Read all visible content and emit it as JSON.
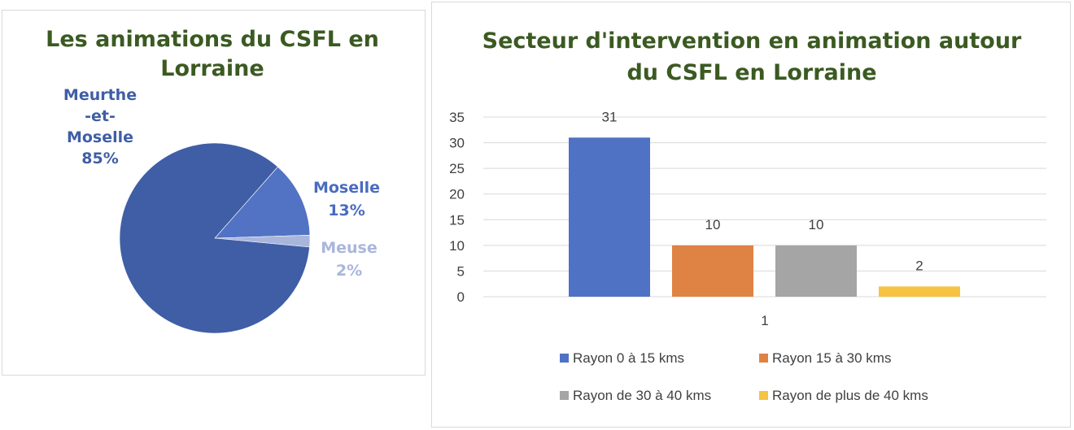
{
  "chart_data": [
    {
      "type": "pie",
      "title": "Les animations du CSFL en Lorraine",
      "title_lines": [
        "Les animations du CSFL en",
        "Lorraine"
      ],
      "slices": [
        {
          "label": "Meurthe -et- Moselle",
          "label_lines": [
            "Meurthe",
            "-et-",
            "Moselle"
          ],
          "value": 85,
          "value_label": "85%",
          "color": "#3f5ea6",
          "label_color": "#3f5ea6"
        },
        {
          "label": "Moselle",
          "label_lines": [
            "Moselle"
          ],
          "value": 13,
          "value_label": "13%",
          "color": "#5272c3",
          "label_color": "#4a6bc0"
        },
        {
          "label": "Meuse",
          "label_lines": [
            "Meuse"
          ],
          "value": 2,
          "value_label": "2%",
          "color": "#a9b6dc",
          "label_color": "#a9b6dc"
        }
      ]
    },
    {
      "type": "bar",
      "title": "Secteur d'intervention en animation autour du CSFL en Lorraine",
      "title_lines": [
        "Secteur d'intervention en animation autour",
        "du CSFL en Lorraine"
      ],
      "categories": [
        "1"
      ],
      "xlabel": "",
      "ylabel": "",
      "ylim": [
        0,
        35
      ],
      "yticks": [
        0,
        5,
        10,
        15,
        20,
        25,
        30,
        35
      ],
      "grid": true,
      "legend_position": "bottom",
      "series": [
        {
          "name": "Rayon 0 à 15 kms",
          "values": [
            31
          ],
          "color": "#4f72c4"
        },
        {
          "name": "Rayon 15 à 30 kms",
          "values": [
            10
          ],
          "color": "#df8344"
        },
        {
          "name": "Rayon de 30 à 40 kms",
          "values": [
            10
          ],
          "color": "#a5a5a5"
        },
        {
          "name": "Rayon de plus de 40 kms",
          "values": [
            2
          ],
          "color": "#f6c342"
        }
      ]
    }
  ]
}
